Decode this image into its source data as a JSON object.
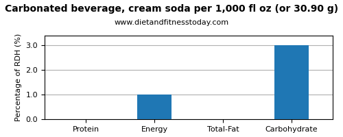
{
  "chart_data": {
    "type": "bar",
    "title": "Carbonated beverage, cream soda per 1,000 fl oz (or 30.90 g)",
    "subtitle": "www.dietandfitnesstoday.com",
    "categories": [
      "Protein",
      "Energy",
      "Total-Fat",
      "Carbohydrate"
    ],
    "values": [
      0.0,
      1.0,
      0.0,
      3.0
    ],
    "ylabel": "Percentage of RDH (%)",
    "ylim": [
      0,
      3.4
    ],
    "yticks": [
      {
        "value": 0.0,
        "label": "0.0"
      },
      {
        "value": 1.0,
        "label": "1.0"
      },
      {
        "value": 2.0,
        "label": "2.0"
      },
      {
        "value": 3.0,
        "label": "3.0"
      }
    ],
    "grid": true
  }
}
